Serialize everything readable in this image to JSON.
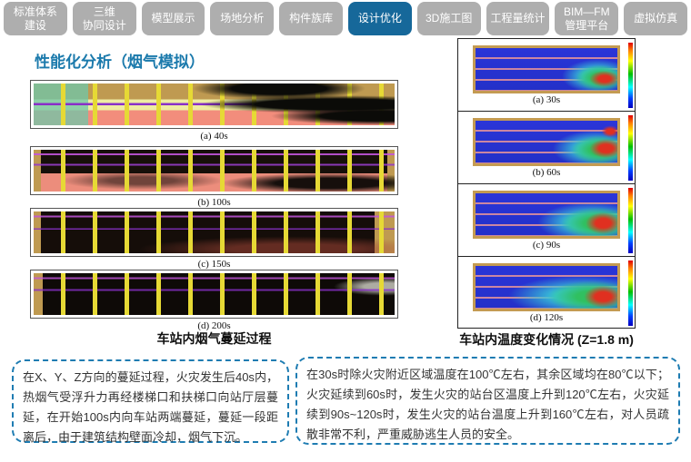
{
  "page": {
    "title": "性能化分析（烟气模拟）"
  },
  "nav": {
    "tabs": [
      {
        "label": "标准体系\n建设",
        "active": false
      },
      {
        "label": "三维\n协同设计",
        "active": false
      },
      {
        "label": "模型展示",
        "active": false
      },
      {
        "label": "场地分析",
        "active": false
      },
      {
        "label": "构件族库",
        "active": false
      },
      {
        "label": "设计优化",
        "active": true
      },
      {
        "label": "3D施工图",
        "active": false
      },
      {
        "label": "工程量统计",
        "active": false
      },
      {
        "label": "BIM—FM\n管理平台",
        "active": false
      },
      {
        "label": "虚拟仿真",
        "active": false
      }
    ]
  },
  "smoke_panel": {
    "caption": "车站内烟气蔓延过程",
    "images": [
      {
        "label": "(a) 40s"
      },
      {
        "label": "(b) 100s"
      },
      {
        "label": "(c) 150s"
      },
      {
        "label": "(d) 200s"
      }
    ]
  },
  "temp_panel": {
    "caption": "车站内温度变化情况 (Z=1.8 m)",
    "images": [
      {
        "label": "(a) 30s"
      },
      {
        "label": "(b) 60s"
      },
      {
        "label": "(c) 90s"
      },
      {
        "label": "(d) 120s"
      }
    ]
  },
  "notes": {
    "left": "在X、Y、Z方向的蔓延过程，火灾发生后40s内，热烟气受浮升力再经楼梯口和扶梯口向站厅层蔓延，在开始100s内向车站两端蔓延，蔓延一段距离后，由于建筑结构壁面冷却，烟气下沉。",
    "right": "在30s时除火灾附近区域温度在100℃左右，其余区域均在80℃以下；火灾延续到60s时，发生火灾的站台区温度上升到120℃左右，火灾延续到90s~120s时，发生火灾的站台温度上升到160℃左右，对人员疏散非常不利，严重威胁逃生人员的安全。"
  },
  "colors": {
    "active_tab": "#16689A",
    "tab_gray": "#AEAEAE",
    "title_blue": "#1B7AAC",
    "note_border": "#1E7CB2"
  }
}
